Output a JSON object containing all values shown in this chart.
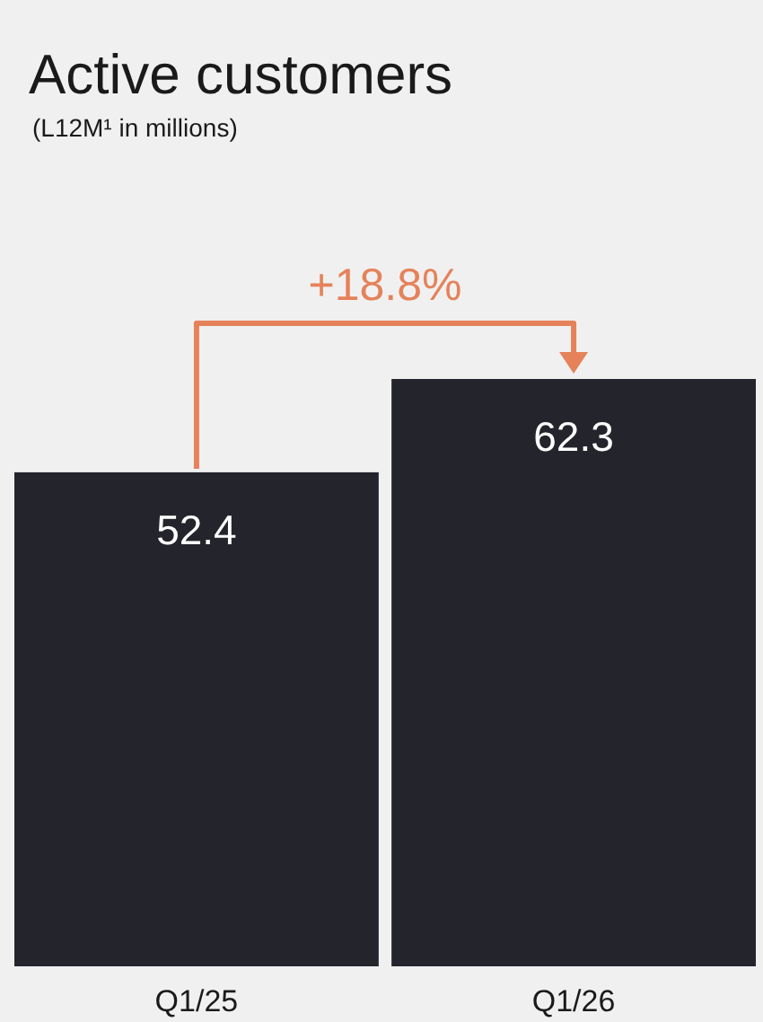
{
  "chart_data": {
    "type": "bar",
    "title": "Active customers",
    "subtitle": "(L12M¹ in millions)",
    "categories": [
      "Q1/25",
      "Q1/26"
    ],
    "values": [
      52.4,
      62.3
    ],
    "color": "#24242c",
    "data_labels": true,
    "annotations": [
      "+18.8%"
    ]
  }
}
